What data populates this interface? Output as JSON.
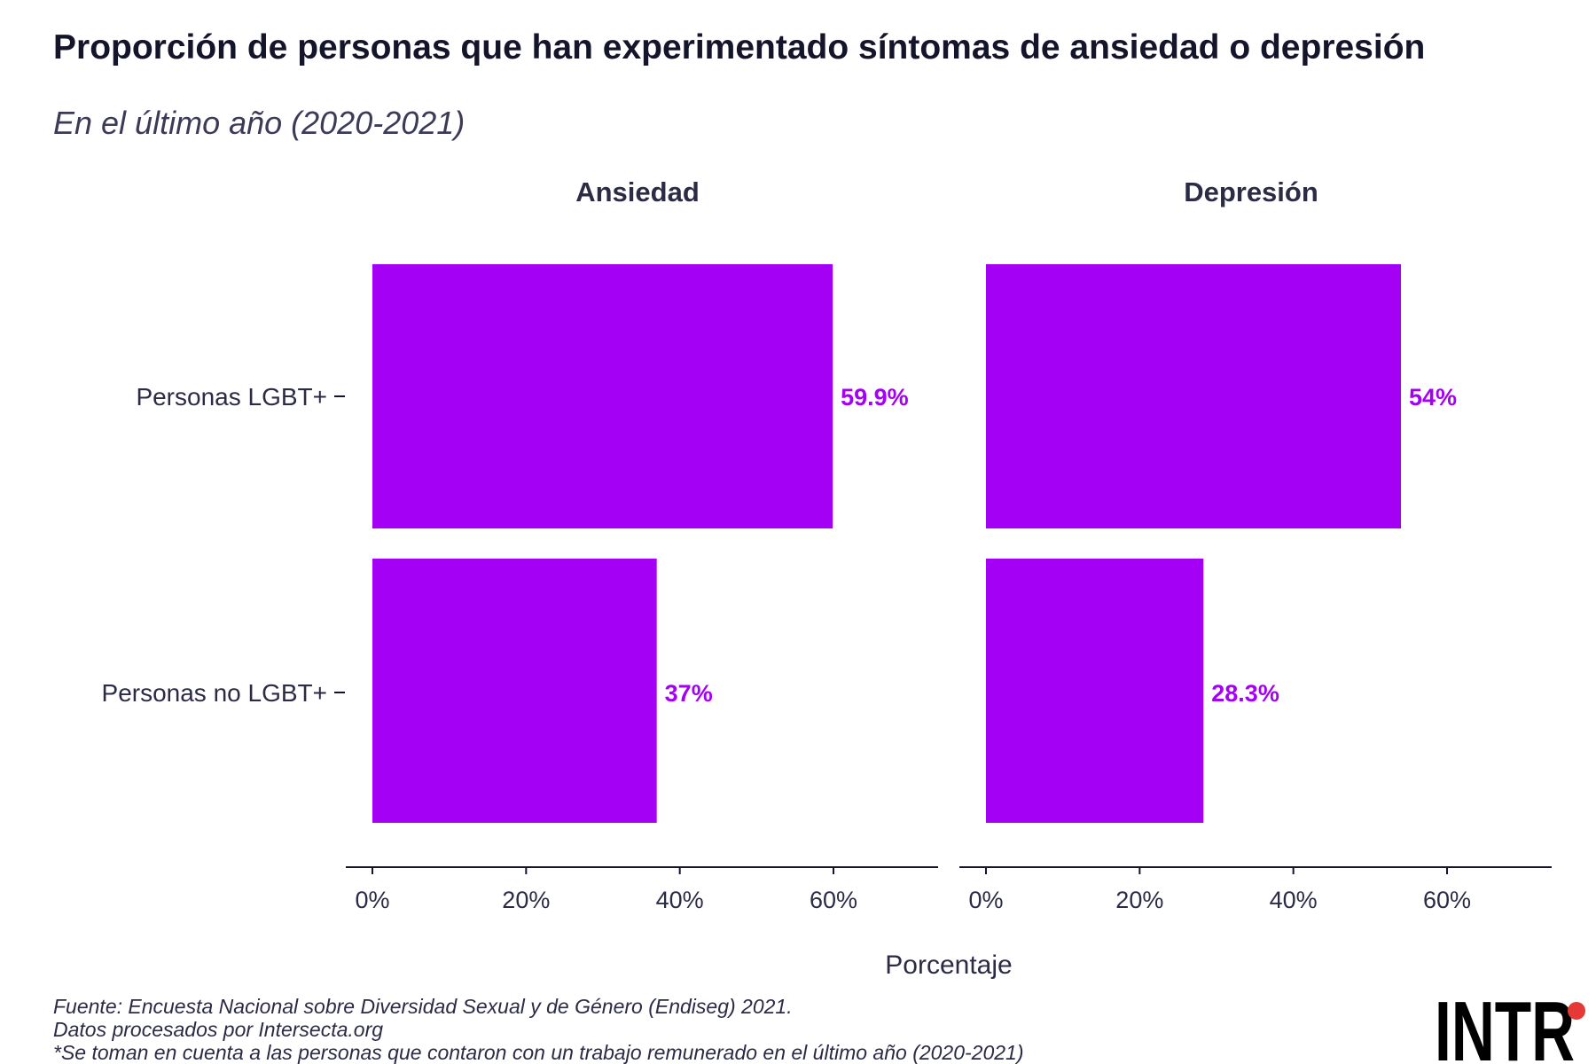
{
  "title": "Proporción de personas que han experimentado síntomas de ansiedad o depresión",
  "subtitle": "En el último año (2020-2021)",
  "chart_data": {
    "type": "bar",
    "orientation": "horizontal",
    "facets": [
      "Ansiedad",
      "Depresión"
    ],
    "categories": [
      "Personas LGBT+",
      "Personas no LGBT+"
    ],
    "series": [
      {
        "facet": "Ansiedad",
        "values": [
          59.9,
          37
        ],
        "labels": [
          "59.9%",
          "37%"
        ]
      },
      {
        "facet": "Depresión",
        "values": [
          54,
          28.3
        ],
        "labels": [
          "54%",
          "28.3%"
        ]
      }
    ],
    "xlabel": "Porcentaje",
    "ylabel": "",
    "xlim": [
      0,
      70
    ],
    "xticks": [
      0,
      20,
      40,
      60
    ],
    "xtick_labels": [
      "0%",
      "20%",
      "40%",
      "60%"
    ],
    "grid": false,
    "colors": {
      "bar": "#a400f5",
      "label": "#a400f5",
      "axis": "#14142b",
      "text": "#2b2b45"
    }
  },
  "footer": {
    "source": "Fuente: Encuesta Nacional sobre Diversidad Sexual y de Género (Endiseg) 2021.",
    "processed": "Datos procesados por Intersecta.org",
    "note": "*Se toman en cuenta a las personas que contaron con un trabajo remunerado en el último año (2020-2021)"
  },
  "logo": {
    "text": "INTR",
    "dot_color": "#e53935"
  }
}
